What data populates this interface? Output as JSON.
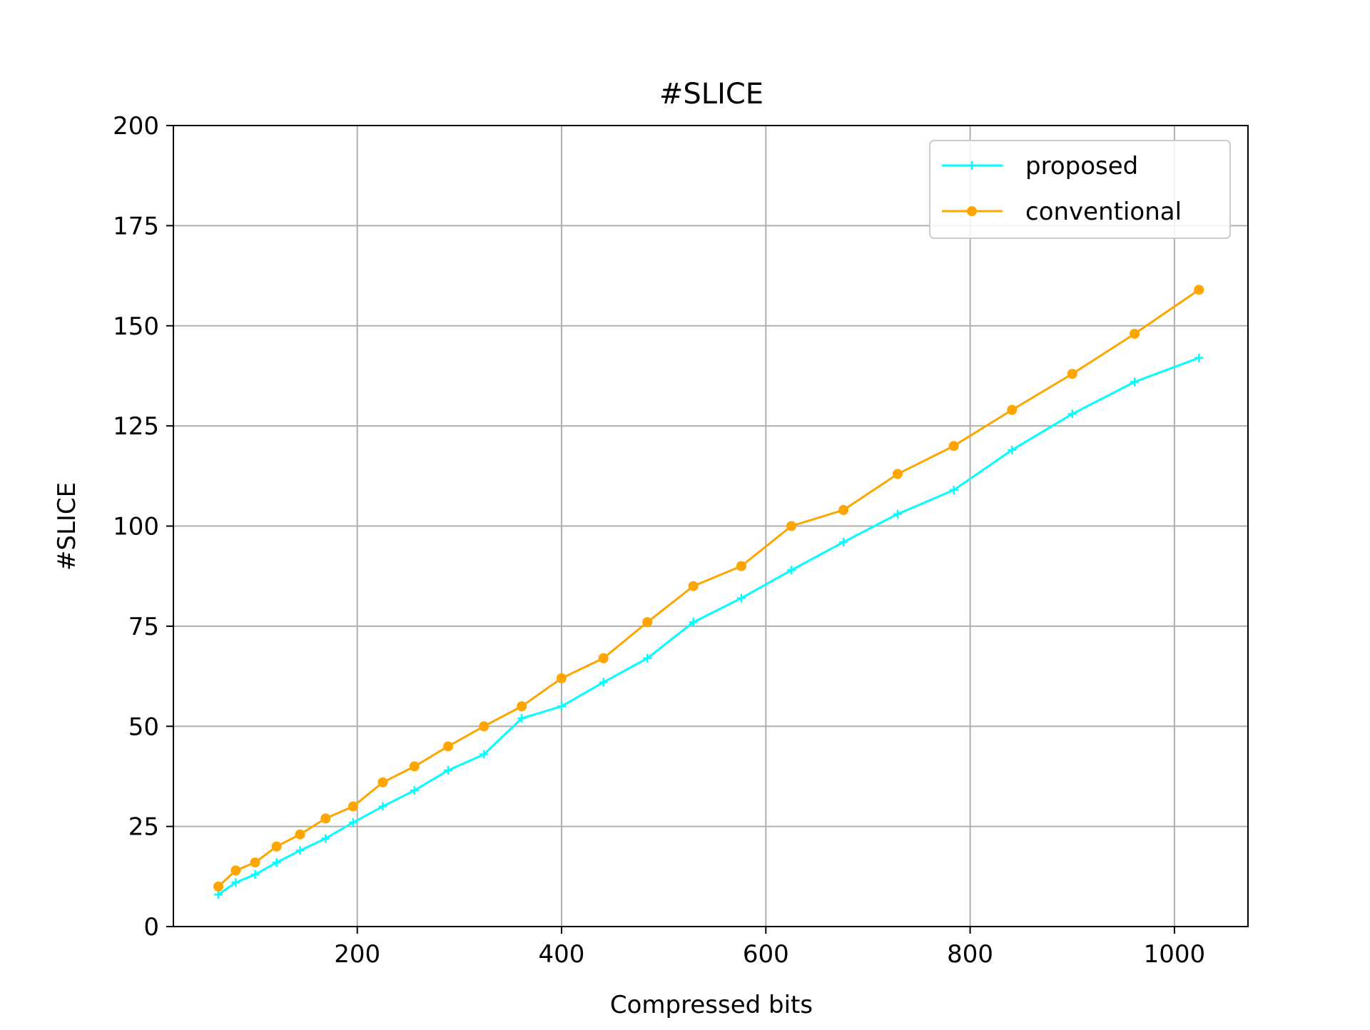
{
  "chart_data": {
    "type": "line",
    "title": "#SLICE",
    "xlabel": "Compressed bits",
    "ylabel": "#SLICE",
    "xlim": [
      20,
      1072
    ],
    "ylim": [
      0,
      200
    ],
    "xticks": [
      200,
      400,
      600,
      800,
      1000
    ],
    "yticks": [
      0,
      25,
      50,
      75,
      100,
      125,
      150,
      175,
      200
    ],
    "grid": true,
    "legend_position": "top-right",
    "x": [
      64,
      81,
      100,
      121,
      144,
      169,
      196,
      225,
      256,
      289,
      324,
      361,
      400,
      441,
      484,
      529,
      576,
      625,
      676,
      729,
      784,
      841,
      900,
      961,
      1024
    ],
    "series": [
      {
        "name": "proposed",
        "color": "#00ffff",
        "marker": "plus",
        "values": [
          8,
          11,
          13,
          16,
          19,
          22,
          26,
          30,
          34,
          39,
          43,
          52,
          55,
          61,
          67,
          76,
          82,
          89,
          96,
          103,
          109,
          119,
          128,
          136,
          142
        ]
      },
      {
        "name": "conventional",
        "color": "#ffa500",
        "marker": "circle",
        "values": [
          10,
          14,
          16,
          20,
          23,
          27,
          30,
          36,
          40,
          45,
          50,
          55,
          62,
          67,
          76,
          85,
          90,
          100,
          104,
          113,
          120,
          129,
          138,
          148,
          159
        ]
      }
    ]
  }
}
